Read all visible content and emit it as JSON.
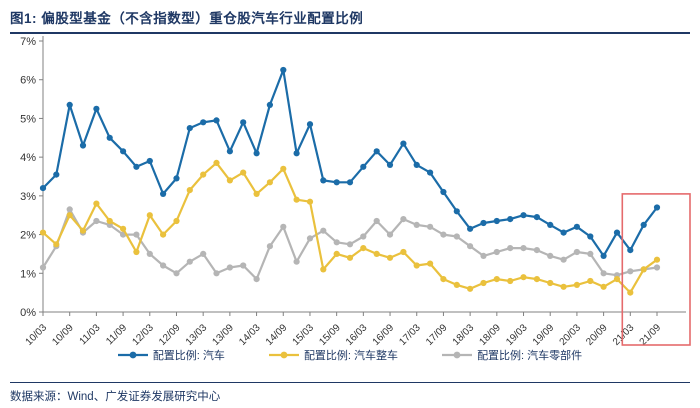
{
  "header": {
    "title": "图1:  偏股型基金（不含指数型）重仓股汽车行业配置比例"
  },
  "footer": {
    "source": "数据来源：Wind、广发证券发展研究中心"
  },
  "chart_data": {
    "type": "line",
    "title": "偏股型基金（不含指数型）重仓股汽车行业配置比例",
    "xlabel": "",
    "ylabel": "",
    "ylim": [
      0,
      7
    ],
    "y_ticks": [
      "0%",
      "1%",
      "2%",
      "3%",
      "4%",
      "5%",
      "6%",
      "7%"
    ],
    "grid": false,
    "legend_position": "bottom",
    "x_tick_labels": [
      "10/03",
      "10/09",
      "11/03",
      "11/09",
      "12/03",
      "12/09",
      "13/03",
      "13/09",
      "14/03",
      "14/09",
      "15/03",
      "15/09",
      "16/03",
      "16/09",
      "17/03",
      "17/09",
      "18/03",
      "18/09",
      "19/03",
      "19/09",
      "20/03",
      "20/09",
      "21/03",
      "21/09"
    ],
    "x": [
      "10/03",
      "10/06",
      "10/09",
      "10/12",
      "11/03",
      "11/06",
      "11/09",
      "11/12",
      "12/03",
      "12/06",
      "12/09",
      "12/12",
      "13/03",
      "13/06",
      "13/09",
      "13/12",
      "14/03",
      "14/06",
      "14/09",
      "14/12",
      "15/03",
      "15/06",
      "15/09",
      "15/12",
      "16/03",
      "16/06",
      "16/09",
      "16/12",
      "17/03",
      "17/06",
      "17/09",
      "17/12",
      "18/03",
      "18/06",
      "18/09",
      "18/12",
      "19/03",
      "19/06",
      "19/09",
      "19/12",
      "20/03",
      "20/06",
      "20/09",
      "20/12",
      "21/03",
      "21/06",
      "21/09"
    ],
    "series": [
      {
        "name": "配置比例: 汽车",
        "color": "#1b6ca8",
        "values": [
          3.2,
          3.55,
          5.35,
          4.3,
          5.25,
          4.5,
          4.15,
          3.75,
          3.9,
          3.05,
          3.45,
          4.75,
          4.9,
          4.95,
          4.15,
          4.9,
          4.1,
          5.35,
          6.25,
          4.1,
          4.85,
          3.4,
          3.35,
          3.35,
          3.75,
          4.15,
          3.8,
          4.35,
          3.8,
          3.6,
          3.1,
          2.6,
          2.15,
          2.3,
          2.35,
          2.4,
          2.5,
          2.45,
          2.25,
          2.05,
          2.2,
          1.95,
          1.45,
          2.05,
          1.6,
          2.25,
          2.7
        ]
      },
      {
        "name": "配置比例: 汽车整车",
        "color": "#eac13d",
        "values": [
          2.05,
          1.75,
          2.5,
          2.1,
          2.8,
          2.35,
          2.15,
          1.55,
          2.5,
          2.0,
          2.35,
          3.15,
          3.55,
          3.85,
          3.4,
          3.6,
          3.05,
          3.35,
          3.7,
          2.9,
          2.85,
          1.1,
          1.5,
          1.4,
          1.65,
          1.5,
          1.4,
          1.55,
          1.2,
          1.25,
          0.85,
          0.7,
          0.6,
          0.75,
          0.85,
          0.8,
          0.9,
          0.85,
          0.75,
          0.65,
          0.7,
          0.8,
          0.65,
          0.85,
          0.5,
          1.1,
          1.35
        ]
      },
      {
        "name": "配置比例: 汽车零部件",
        "color": "#b5b5b5",
        "values": [
          1.15,
          1.7,
          2.65,
          2.05,
          2.35,
          2.25,
          2.0,
          2.0,
          1.5,
          1.2,
          1.0,
          1.3,
          1.5,
          1.0,
          1.15,
          1.2,
          0.85,
          1.7,
          2.2,
          1.3,
          1.9,
          2.1,
          1.8,
          1.75,
          1.95,
          2.35,
          2.0,
          2.4,
          2.25,
          2.2,
          2.0,
          1.95,
          1.7,
          1.45,
          1.55,
          1.65,
          1.65,
          1.6,
          1.45,
          1.35,
          1.55,
          1.5,
          1.0,
          0.95,
          1.05,
          1.1,
          1.15
        ]
      }
    ],
    "highlight_box": {
      "from_x": "21/03",
      "to_x": "21/09",
      "color": "#e56a6c",
      "top_value": 3.05
    }
  }
}
